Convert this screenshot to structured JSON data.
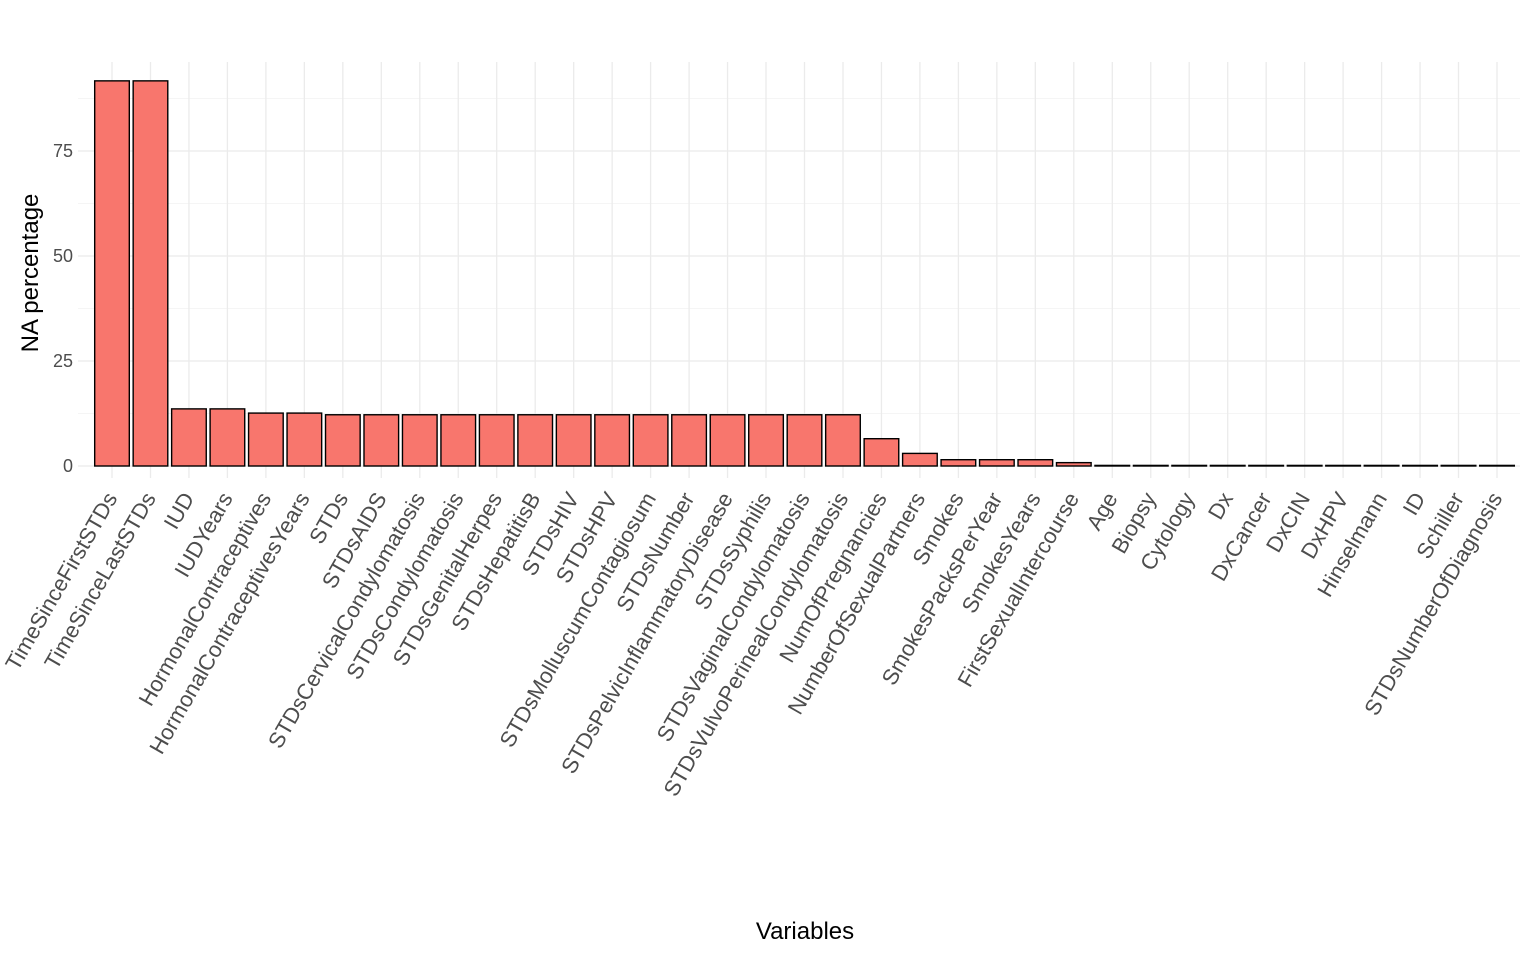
{
  "chart_data": {
    "type": "bar",
    "xlabel": "Variables",
    "ylabel": "NA percentage",
    "ylim": [
      0,
      95
    ],
    "y_ticks": [
      0,
      25,
      50,
      75
    ],
    "grid": true,
    "colors": {
      "bar_fill": "#F8766D",
      "bar_outline": "#000000",
      "grid": "#ebebeb"
    },
    "categories": [
      "TimeSinceFirstSTDs",
      "TimeSinceLastSTDs",
      "IUD",
      "IUDYears",
      "HormonalContraceptives",
      "HormonalContraceptivesYears",
      "STDs",
      "STDsAIDS",
      "STDsCervicalCondylomatosis",
      "STDsCondylomatosis",
      "STDsGenitalHerpes",
      "STDsHepatitisB",
      "STDsHIV",
      "STDsHPV",
      "STDsMolluscumContagiosum",
      "STDsNumber",
      "STDsPelvicInflammatoryDisease",
      "STDsSyphilis",
      "STDsVaginalCondylomatosis",
      "STDsVulvoPerinealCondylomatosis",
      "NumOfPregnancies",
      "NumberOfSexualPartners",
      "Smokes",
      "SmokesPacksPerYear",
      "SmokesYears",
      "FirstSexualIntercourse",
      "Age",
      "Biopsy",
      "Cytology",
      "Dx",
      "DxCancer",
      "DxCIN",
      "DxHPV",
      "Hinselmann",
      "ID",
      "Schiller",
      "STDsNumberOfDiagnosis"
    ],
    "values": [
      91.7,
      91.7,
      13.6,
      13.6,
      12.6,
      12.6,
      12.2,
      12.2,
      12.2,
      12.2,
      12.2,
      12.2,
      12.2,
      12.2,
      12.2,
      12.2,
      12.2,
      12.2,
      12.2,
      12.2,
      6.5,
      3.0,
      1.5,
      1.5,
      1.5,
      0.8,
      0,
      0,
      0,
      0,
      0,
      0,
      0,
      0,
      0,
      0,
      0
    ]
  }
}
